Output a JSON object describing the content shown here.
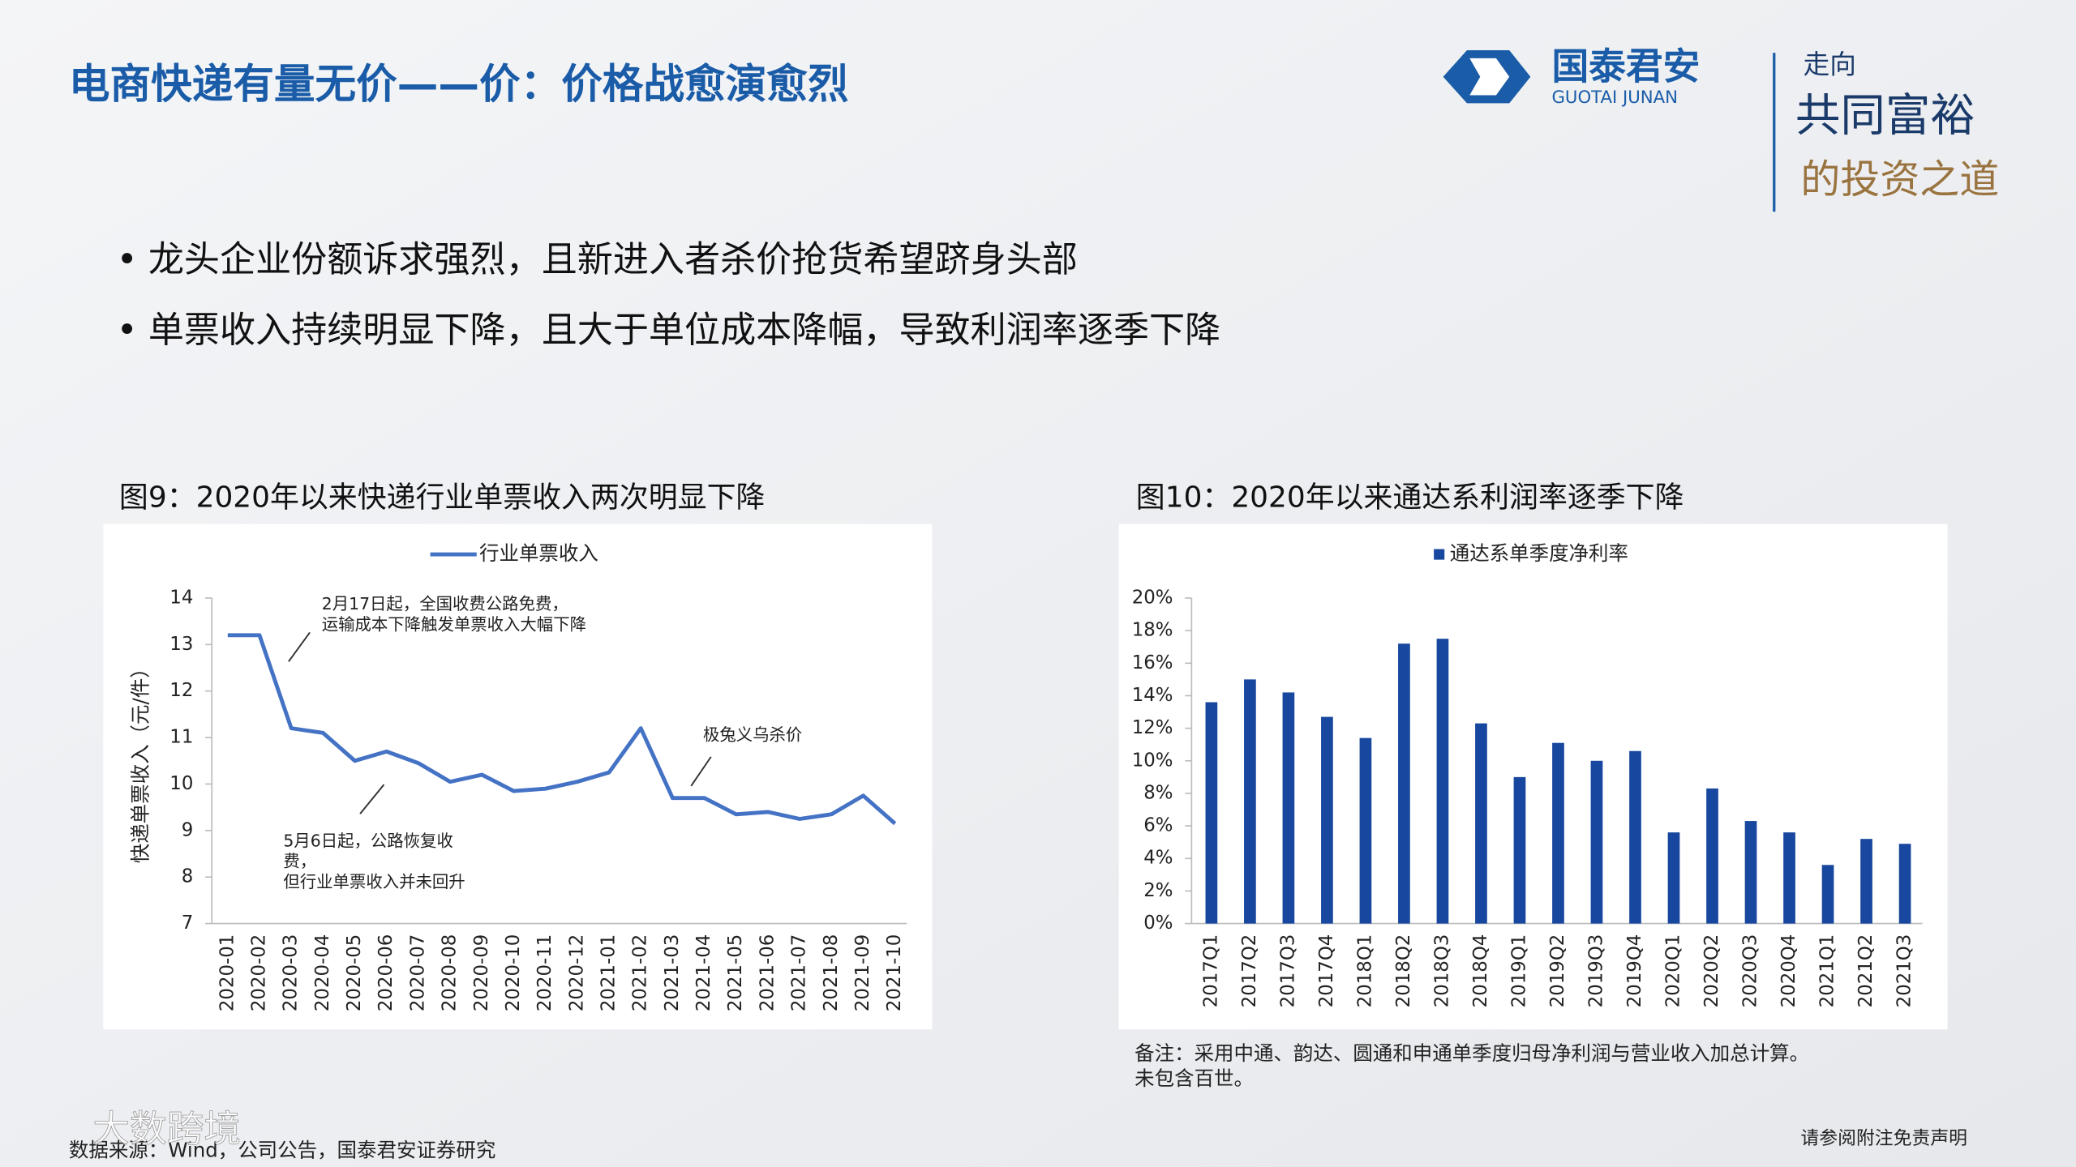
{
  "header": {
    "title": "电商快递有量无价——价：价格战愈演愈烈",
    "logo_name": "国泰君安",
    "logo_en": "GUOTAI JUNAN",
    "slogan": [
      "走向",
      "共同富裕",
      "的投资之道"
    ]
  },
  "bullets": [
    "龙头企业份额诉求强烈，且新进入者杀价抢货希望跻身头部",
    "单票收入持续明显下降，且大于单位成本降幅，导致利润率逐季下降"
  ],
  "chart_data": [
    {
      "type": "line",
      "title": "图9：2020年以来快递行业单票收入两次明显下降",
      "y_label": "快递单票收入（元/件）",
      "categories": [
        "2020-01",
        "2020-02",
        "2020-03",
        "2020-04",
        "2020-05",
        "2020-06",
        "2020-07",
        "2020-08",
        "2020-09",
        "2020-10",
        "2020-11",
        "2020-12",
        "2021-01",
        "2021-02",
        "2021-03",
        "2021-04",
        "2021-05",
        "2021-06",
        "2021-07",
        "2021-08",
        "2021-09",
        "2021-10"
      ],
      "series": [
        {
          "name": "行业单票收入",
          "color": "#4472c4",
          "values": [
            13.2,
            13.2,
            11.2,
            11.1,
            10.5,
            10.7,
            10.45,
            10.05,
            10.2,
            9.85,
            9.9,
            10.05,
            10.25,
            11.2,
            9.7,
            9.7,
            9.35,
            9.4,
            9.25,
            9.35,
            9.75,
            9.15
          ]
        }
      ],
      "ylim": [
        7,
        14
      ],
      "yticks": [
        7,
        8,
        9,
        10,
        11,
        12,
        13,
        14
      ],
      "annotations": [
        [
          "2月17日起，全国收费公路免费，",
          "运输成本下降触发单票收入大幅下降"
        ],
        [
          "极兔义乌杀价"
        ],
        [
          "5月6日起，公路恢复收",
          "费，",
          "但行业单票收入并未回升"
        ]
      ]
    },
    {
      "type": "bar",
      "title": "图10：2020年以来通达系利润率逐季下降",
      "categories": [
        "2017Q1",
        "2017Q2",
        "2017Q3",
        "2017Q4",
        "2018Q1",
        "2018Q2",
        "2018Q3",
        "2018Q4",
        "2019Q1",
        "2019Q2",
        "2019Q3",
        "2019Q4",
        "2020Q1",
        "2020Q2",
        "2020Q3",
        "2020Q4",
        "2021Q1",
        "2021Q2",
        "2021Q3"
      ],
      "series": [
        {
          "name": "通达系单季度净利率",
          "color": "#17479e",
          "values": [
            13.6,
            15.0,
            14.2,
            12.7,
            11.4,
            17.2,
            17.5,
            12.3,
            9.0,
            11.1,
            10.0,
            10.6,
            5.6,
            8.3,
            6.3,
            5.6,
            3.6,
            5.2,
            4.9
          ]
        }
      ],
      "ylim": [
        0,
        20
      ],
      "yticks": [
        {
          "value": 0,
          "label": "0%"
        },
        {
          "value": 2,
          "label": "2%"
        },
        {
          "value": 4,
          "label": "4%"
        },
        {
          "value": 6,
          "label": "6%"
        },
        {
          "value": 8,
          "label": "8%"
        },
        {
          "value": 10,
          "label": "10%"
        },
        {
          "value": 12,
          "label": "12%"
        },
        {
          "value": 14,
          "label": "14%"
        },
        {
          "value": 16,
          "label": "16%"
        },
        {
          "value": 18,
          "label": "18%"
        },
        {
          "value": 20,
          "label": "20%"
        }
      ]
    }
  ],
  "notes": [
    "备注：采用中通、韵达、圆通和申通单季度归母净利润与营业收入加总计算。",
    "未包含百世。"
  ],
  "source": "数据来源：Wind，公司公告，国泰君安证券研究",
  "footer": "请参阅附注免责声明",
  "watermark": "大数跨境"
}
